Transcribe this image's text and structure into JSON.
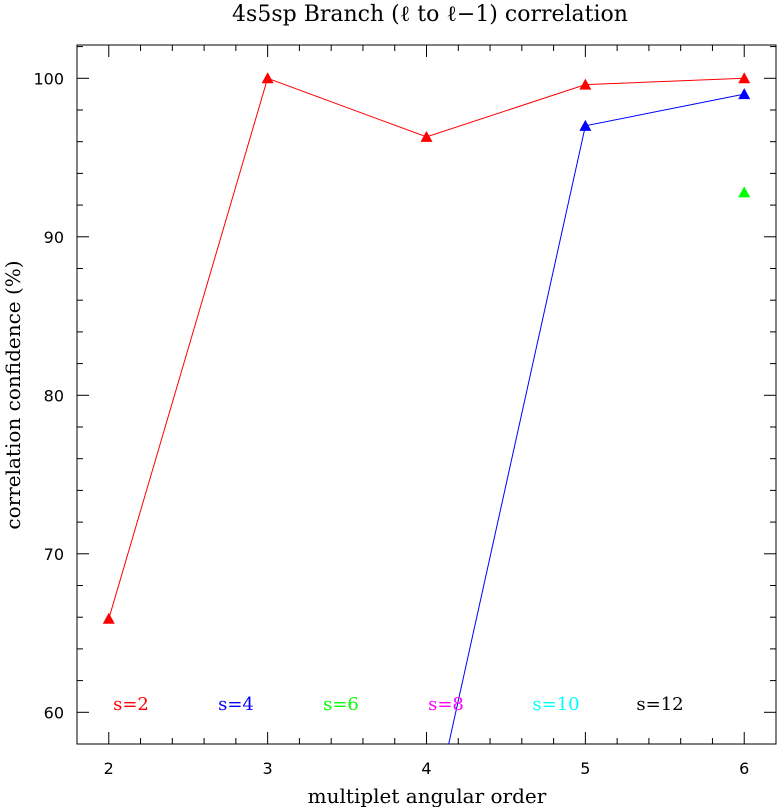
{
  "chart_data": {
    "type": "line",
    "title": "4s5sp Branch (ℓ to ℓ−1) correlation",
    "xlabel": "multiplet angular order",
    "ylabel": "correlation confidence (%)",
    "xlim": [
      1.8,
      6.2
    ],
    "ylim": [
      58,
      102.1
    ],
    "x_ticks": [
      2,
      3,
      4,
      5,
      6
    ],
    "y_ticks": [
      60,
      70,
      80,
      90,
      100
    ],
    "x_tick_labels": [
      "2",
      "3",
      "4",
      "5",
      "6"
    ],
    "y_tick_labels": [
      "60",
      "70",
      "80",
      "90",
      "100"
    ],
    "grid": false,
    "series": [
      {
        "name": "s=2",
        "color": "#ff0000",
        "points": [
          [
            2,
            65.9
          ],
          [
            3,
            100.0
          ],
          [
            4,
            96.3
          ],
          [
            5,
            99.6
          ],
          [
            6,
            100.0
          ]
        ],
        "line_points": [
          [
            2,
            65.9
          ],
          [
            3,
            100.0
          ],
          [
            4,
            96.3
          ],
          [
            5,
            99.6
          ],
          [
            6,
            100.0
          ]
        ]
      },
      {
        "name": "s=4",
        "color": "#0000ff",
        "points": [
          [
            5,
            97.0
          ],
          [
            6,
            99.0
          ]
        ],
        "line_points": [
          [
            4.14,
            58.0
          ],
          [
            5,
            97.0
          ],
          [
            6,
            99.0
          ]
        ]
      },
      {
        "name": "s=6",
        "color": "#00ff00",
        "points": [
          [
            6,
            92.8
          ]
        ],
        "line_points": []
      },
      {
        "name": "s=8",
        "color": "#ff00ff",
        "points": [],
        "line_points": []
      },
      {
        "name": "s=10",
        "color": "#00ffff",
        "points": [],
        "line_points": []
      },
      {
        "name": "s=12",
        "color": "#000000",
        "points": [],
        "line_points": []
      }
    ],
    "legend_placement": "bottom, inside plot"
  }
}
